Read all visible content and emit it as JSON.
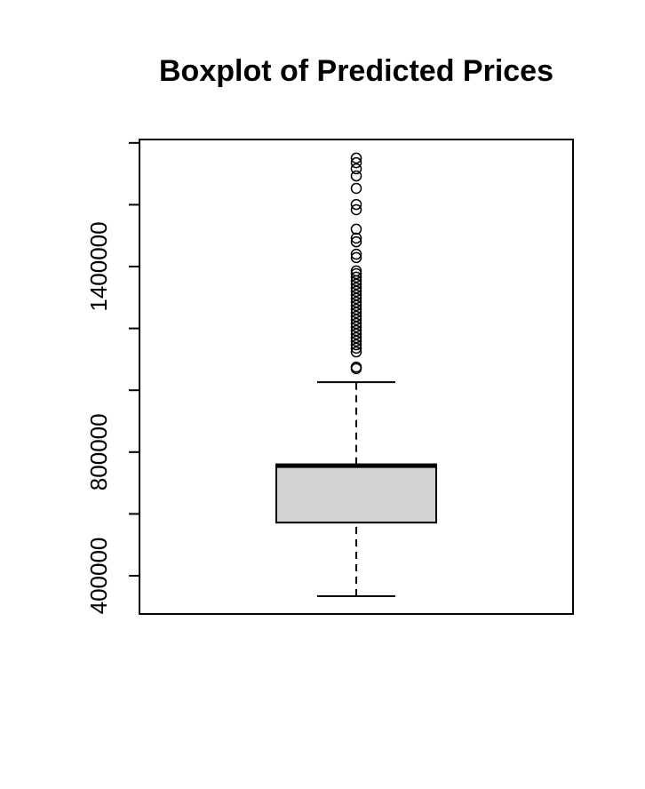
{
  "chart_data": {
    "type": "boxplot",
    "title": "Boxplot of Predicted Prices",
    "color": "#d3d3d3",
    "box": {
      "whisker_low": 334000,
      "q1": 572000,
      "median": 756000,
      "q3": 760000,
      "whisker_high": 1026000,
      "outliers": [
        1070000,
        1075000,
        1124000,
        1136000,
        1147000,
        1159000,
        1170000,
        1182000,
        1193000,
        1205000,
        1216000,
        1228000,
        1239000,
        1251000,
        1262000,
        1274000,
        1285000,
        1297000,
        1308000,
        1320000,
        1331000,
        1343000,
        1354000,
        1366000,
        1377000,
        1386000,
        1429000,
        1440000,
        1480000,
        1492000,
        1521000,
        1584000,
        1601000,
        1653000,
        1693000,
        1716000,
        1736000,
        1751000
      ]
    },
    "ylim": [
      276400,
      1811000
    ],
    "yticks": [
      400000,
      {
        "value": 600000,
        "label": null
      },
      800000,
      {
        "value": 1000000,
        "label": null
      },
      {
        "value": 1200000,
        "label": null
      },
      1400000,
      {
        "value": 1600000,
        "label": null
      },
      {
        "value": 1800000,
        "label": null
      }
    ]
  }
}
